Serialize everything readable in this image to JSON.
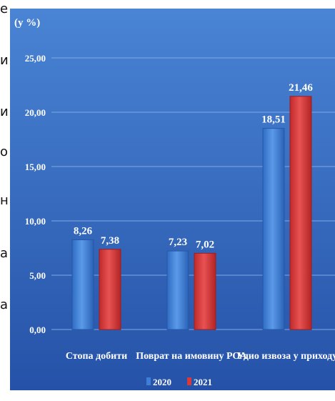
{
  "margin_fragments": [
    "е",
    "и",
    "и",
    "о",
    "н",
    "а",
    "а"
  ],
  "colors": {
    "bg_top": "#4a84d4",
    "bg_bottom": "#2552a8",
    "grid": "#7ea8e6",
    "series_2020": "#3d7fd6",
    "series_2021": "#d63a3a"
  },
  "chart_data": {
    "type": "bar",
    "ylabel": "(у %)",
    "ylim": [
      0,
      25
    ],
    "yticks": [
      "0,00",
      "5,00",
      "10,00",
      "15,00",
      "20,00",
      "25,00"
    ],
    "categories": [
      "Стопа добити",
      "Поврат на имовину РОА",
      "Удио извоза у приходу"
    ],
    "series": [
      {
        "name": "2020",
        "color": "#3d7fd6",
        "values": [
          8.26,
          7.23,
          18.51
        ],
        "labels": [
          "8,26",
          "7,23",
          "18,51"
        ]
      },
      {
        "name": "2021",
        "color": "#d63a3a",
        "values": [
          7.38,
          7.02,
          21.46
        ],
        "labels": [
          "7,38",
          "7,02",
          "21,46"
        ]
      }
    ],
    "legend_position": "bottom",
    "grid": true
  }
}
